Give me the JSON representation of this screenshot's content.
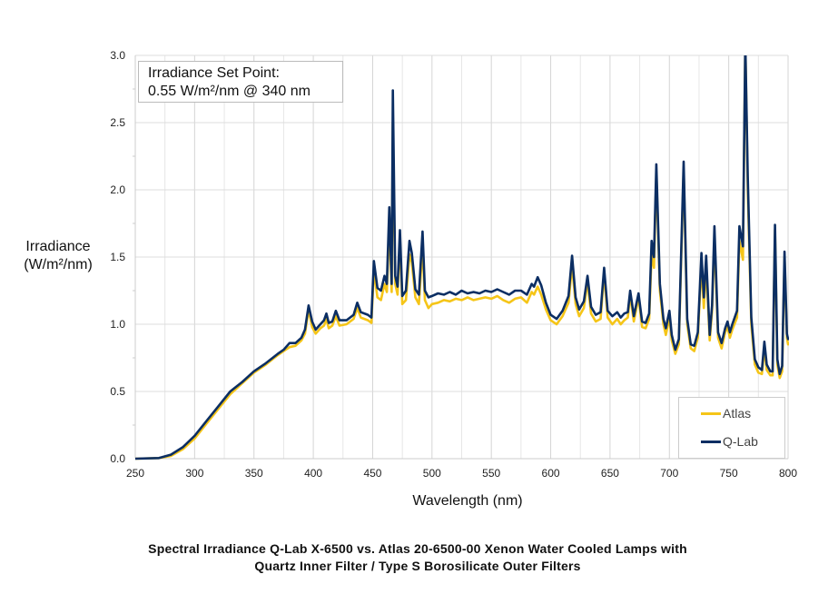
{
  "chart_data": {
    "type": "line",
    "title": "Spectral Irradiance Q-Lab X-6500 vs. Atlas 20-6500-00 Xenon Water Cooled Lamps with Quartz Inner Filter / Type S Borosilicate Outer Filters",
    "title_lines": [
      "Spectral Irradiance Q-Lab X-6500 vs. Atlas 20-6500-00 Xenon Water Cooled Lamps with",
      "Quartz Inner Filter / Type S Borosilicate Outer Filters"
    ],
    "xlabel": "Wavelength (nm)",
    "ylabel_lines": [
      "Irradiance",
      "(W/m²/nm)"
    ],
    "xlim": [
      250,
      800
    ],
    "ylim": [
      0,
      3.0
    ],
    "x_ticks": [
      250,
      300,
      350,
      400,
      450,
      500,
      550,
      600,
      650,
      700,
      750,
      800
    ],
    "y_ticks": [
      "0.0",
      "0.5",
      "1.0",
      "1.5",
      "2.0",
      "2.5",
      "3.0"
    ],
    "grid": true,
    "annotation_lines": [
      "Irradiance Set Point:",
      "0.55 W/m²/nm @ 340 nm"
    ],
    "legend_position": "bottom-right",
    "series": [
      {
        "name": "Atlas",
        "color": "#F5C518",
        "points": [
          [
            250,
            0
          ],
          [
            270,
            0.005
          ],
          [
            280,
            0.02
          ],
          [
            290,
            0.07
          ],
          [
            300,
            0.15
          ],
          [
            310,
            0.26
          ],
          [
            320,
            0.37
          ],
          [
            330,
            0.48
          ],
          [
            340,
            0.56
          ],
          [
            350,
            0.64
          ],
          [
            360,
            0.7
          ],
          [
            370,
            0.77
          ],
          [
            375,
            0.8
          ],
          [
            380,
            0.83
          ],
          [
            385,
            0.84
          ],
          [
            390,
            0.88
          ],
          [
            393,
            0.93
          ],
          [
            396,
            1.11
          ],
          [
            399,
            0.98
          ],
          [
            402,
            0.93
          ],
          [
            406,
            0.97
          ],
          [
            409,
            0.99
          ],
          [
            411,
            1.04
          ],
          [
            413,
            0.97
          ],
          [
            416,
            0.99
          ],
          [
            419,
            1.06
          ],
          [
            422,
            0.99
          ],
          [
            428,
            1.0
          ],
          [
            434,
            1.04
          ],
          [
            437,
            1.12
          ],
          [
            440,
            1.05
          ],
          [
            446,
            1.03
          ],
          [
            449,
            1.01
          ],
          [
            451,
            1.4
          ],
          [
            454,
            1.2
          ],
          [
            457,
            1.18
          ],
          [
            460,
            1.3
          ],
          [
            462,
            1.24
          ],
          [
            464,
            1.76
          ],
          [
            466,
            1.24
          ],
          [
            467,
            2.5
          ],
          [
            469,
            1.3
          ],
          [
            471,
            1.22
          ],
          [
            473,
            1.64
          ],
          [
            475,
            1.15
          ],
          [
            478,
            1.18
          ],
          [
            481,
            1.52
          ],
          [
            483,
            1.46
          ],
          [
            486,
            1.2
          ],
          [
            489,
            1.15
          ],
          [
            492,
            1.58
          ],
          [
            494,
            1.18
          ],
          [
            497,
            1.12
          ],
          [
            500,
            1.15
          ],
          [
            505,
            1.16
          ],
          [
            510,
            1.18
          ],
          [
            515,
            1.17
          ],
          [
            520,
            1.19
          ],
          [
            525,
            1.18
          ],
          [
            530,
            1.2
          ],
          [
            535,
            1.18
          ],
          [
            540,
            1.19
          ],
          [
            545,
            1.2
          ],
          [
            550,
            1.19
          ],
          [
            555,
            1.21
          ],
          [
            560,
            1.18
          ],
          [
            565,
            1.16
          ],
          [
            570,
            1.19
          ],
          [
            575,
            1.2
          ],
          [
            580,
            1.16
          ],
          [
            584,
            1.24
          ],
          [
            586,
            1.22
          ],
          [
            589,
            1.28
          ],
          [
            592,
            1.22
          ],
          [
            596,
            1.11
          ],
          [
            600,
            1.03
          ],
          [
            605,
            1.0
          ],
          [
            610,
            1.06
          ],
          [
            615,
            1.16
          ],
          [
            618,
            1.44
          ],
          [
            621,
            1.15
          ],
          [
            624,
            1.06
          ],
          [
            628,
            1.12
          ],
          [
            631,
            1.32
          ],
          [
            634,
            1.08
          ],
          [
            638,
            1.02
          ],
          [
            642,
            1.04
          ],
          [
            645,
            1.38
          ],
          [
            648,
            1.05
          ],
          [
            652,
            1.0
          ],
          [
            656,
            1.04
          ],
          [
            659,
            1.0
          ],
          [
            662,
            1.03
          ],
          [
            665,
            1.05
          ],
          [
            667,
            1.22
          ],
          [
            670,
            1.02
          ],
          [
            674,
            1.2
          ],
          [
            677,
            0.98
          ],
          [
            680,
            0.97
          ],
          [
            683,
            1.04
          ],
          [
            685,
            1.52
          ],
          [
            687,
            1.42
          ],
          [
            689,
            2.13
          ],
          [
            692,
            1.25
          ],
          [
            695,
            1.0
          ],
          [
            697,
            0.92
          ],
          [
            700,
            1.05
          ],
          [
            702,
            0.88
          ],
          [
            705,
            0.78
          ],
          [
            708,
            0.85
          ],
          [
            712,
            2.15
          ],
          [
            715,
            1.0
          ],
          [
            718,
            0.82
          ],
          [
            721,
            0.8
          ],
          [
            724,
            0.9
          ],
          [
            727,
            1.45
          ],
          [
            729,
            1.12
          ],
          [
            731,
            1.43
          ],
          [
            734,
            0.88
          ],
          [
            736,
            1.1
          ],
          [
            738,
            1.65
          ],
          [
            741,
            0.9
          ],
          [
            744,
            0.82
          ],
          [
            747,
            0.94
          ],
          [
            749,
            0.98
          ],
          [
            751,
            0.9
          ],
          [
            753,
            0.96
          ],
          [
            757,
            1.05
          ],
          [
            759,
            1.62
          ],
          [
            762,
            1.48
          ],
          [
            764,
            3.1
          ],
          [
            766,
            2.0
          ],
          [
            769,
            1.0
          ],
          [
            772,
            0.7
          ],
          [
            775,
            0.64
          ],
          [
            778,
            0.63
          ],
          [
            780,
            0.82
          ],
          [
            782,
            0.66
          ],
          [
            785,
            0.62
          ],
          [
            787,
            0.62
          ],
          [
            789,
            1.7
          ],
          [
            791,
            0.7
          ],
          [
            793,
            0.6
          ],
          [
            795,
            0.65
          ],
          [
            797,
            1.5
          ],
          [
            799,
            0.9
          ],
          [
            800,
            0.85
          ]
        ]
      },
      {
        "name": "Q-Lab",
        "color": "#0B2E63",
        "points": [
          [
            250,
            0
          ],
          [
            270,
            0.005
          ],
          [
            280,
            0.03
          ],
          [
            290,
            0.085
          ],
          [
            300,
            0.17
          ],
          [
            310,
            0.28
          ],
          [
            320,
            0.39
          ],
          [
            330,
            0.5
          ],
          [
            340,
            0.57
          ],
          [
            350,
            0.65
          ],
          [
            360,
            0.71
          ],
          [
            370,
            0.78
          ],
          [
            375,
            0.81
          ],
          [
            380,
            0.86
          ],
          [
            385,
            0.86
          ],
          [
            390,
            0.9
          ],
          [
            393,
            0.96
          ],
          [
            396,
            1.14
          ],
          [
            399,
            1.02
          ],
          [
            402,
            0.96
          ],
          [
            406,
            1.0
          ],
          [
            409,
            1.03
          ],
          [
            411,
            1.08
          ],
          [
            413,
            1.01
          ],
          [
            416,
            1.02
          ],
          [
            419,
            1.1
          ],
          [
            422,
            1.03
          ],
          [
            428,
            1.03
          ],
          [
            434,
            1.07
          ],
          [
            437,
            1.16
          ],
          [
            440,
            1.09
          ],
          [
            446,
            1.07
          ],
          [
            449,
            1.05
          ],
          [
            451,
            1.47
          ],
          [
            454,
            1.27
          ],
          [
            457,
            1.25
          ],
          [
            460,
            1.36
          ],
          [
            462,
            1.3
          ],
          [
            464,
            1.87
          ],
          [
            466,
            1.3
          ],
          [
            467,
            2.74
          ],
          [
            469,
            1.36
          ],
          [
            471,
            1.28
          ],
          [
            473,
            1.7
          ],
          [
            475,
            1.21
          ],
          [
            478,
            1.25
          ],
          [
            481,
            1.62
          ],
          [
            483,
            1.53
          ],
          [
            486,
            1.26
          ],
          [
            489,
            1.22
          ],
          [
            492,
            1.69
          ],
          [
            494,
            1.25
          ],
          [
            497,
            1.2
          ],
          [
            500,
            1.21
          ],
          [
            505,
            1.23
          ],
          [
            510,
            1.22
          ],
          [
            515,
            1.24
          ],
          [
            520,
            1.22
          ],
          [
            525,
            1.25
          ],
          [
            530,
            1.23
          ],
          [
            535,
            1.24
          ],
          [
            540,
            1.23
          ],
          [
            545,
            1.25
          ],
          [
            550,
            1.24
          ],
          [
            555,
            1.26
          ],
          [
            560,
            1.24
          ],
          [
            565,
            1.22
          ],
          [
            570,
            1.25
          ],
          [
            575,
            1.25
          ],
          [
            580,
            1.22
          ],
          [
            584,
            1.3
          ],
          [
            586,
            1.28
          ],
          [
            589,
            1.35
          ],
          [
            592,
            1.29
          ],
          [
            596,
            1.16
          ],
          [
            600,
            1.07
          ],
          [
            605,
            1.04
          ],
          [
            610,
            1.1
          ],
          [
            615,
            1.21
          ],
          [
            618,
            1.51
          ],
          [
            621,
            1.2
          ],
          [
            624,
            1.11
          ],
          [
            628,
            1.17
          ],
          [
            631,
            1.36
          ],
          [
            634,
            1.13
          ],
          [
            638,
            1.07
          ],
          [
            642,
            1.09
          ],
          [
            645,
            1.42
          ],
          [
            648,
            1.1
          ],
          [
            652,
            1.06
          ],
          [
            656,
            1.09
          ],
          [
            659,
            1.05
          ],
          [
            662,
            1.08
          ],
          [
            665,
            1.09
          ],
          [
            667,
            1.25
          ],
          [
            670,
            1.06
          ],
          [
            674,
            1.23
          ],
          [
            677,
            1.02
          ],
          [
            680,
            1.01
          ],
          [
            683,
            1.08
          ],
          [
            685,
            1.62
          ],
          [
            687,
            1.5
          ],
          [
            689,
            2.19
          ],
          [
            692,
            1.3
          ],
          [
            695,
            1.04
          ],
          [
            697,
            0.97
          ],
          [
            700,
            1.1
          ],
          [
            702,
            0.92
          ],
          [
            705,
            0.81
          ],
          [
            708,
            0.89
          ],
          [
            712,
            2.21
          ],
          [
            715,
            1.04
          ],
          [
            718,
            0.85
          ],
          [
            721,
            0.84
          ],
          [
            724,
            0.94
          ],
          [
            727,
            1.53
          ],
          [
            729,
            1.2
          ],
          [
            731,
            1.51
          ],
          [
            734,
            0.92
          ],
          [
            736,
            1.14
          ],
          [
            738,
            1.73
          ],
          [
            741,
            0.94
          ],
          [
            744,
            0.86
          ],
          [
            747,
            0.97
          ],
          [
            749,
            1.02
          ],
          [
            751,
            0.94
          ],
          [
            753,
            1.0
          ],
          [
            757,
            1.1
          ],
          [
            759,
            1.73
          ],
          [
            762,
            1.58
          ],
          [
            764,
            3.1
          ],
          [
            766,
            2.1
          ],
          [
            769,
            1.05
          ],
          [
            772,
            0.74
          ],
          [
            775,
            0.68
          ],
          [
            778,
            0.66
          ],
          [
            780,
            0.87
          ],
          [
            782,
            0.7
          ],
          [
            785,
            0.65
          ],
          [
            787,
            0.65
          ],
          [
            789,
            1.74
          ],
          [
            791,
            0.74
          ],
          [
            793,
            0.63
          ],
          [
            795,
            0.69
          ],
          [
            797,
            1.54
          ],
          [
            799,
            0.93
          ],
          [
            800,
            0.89
          ]
        ]
      }
    ]
  }
}
